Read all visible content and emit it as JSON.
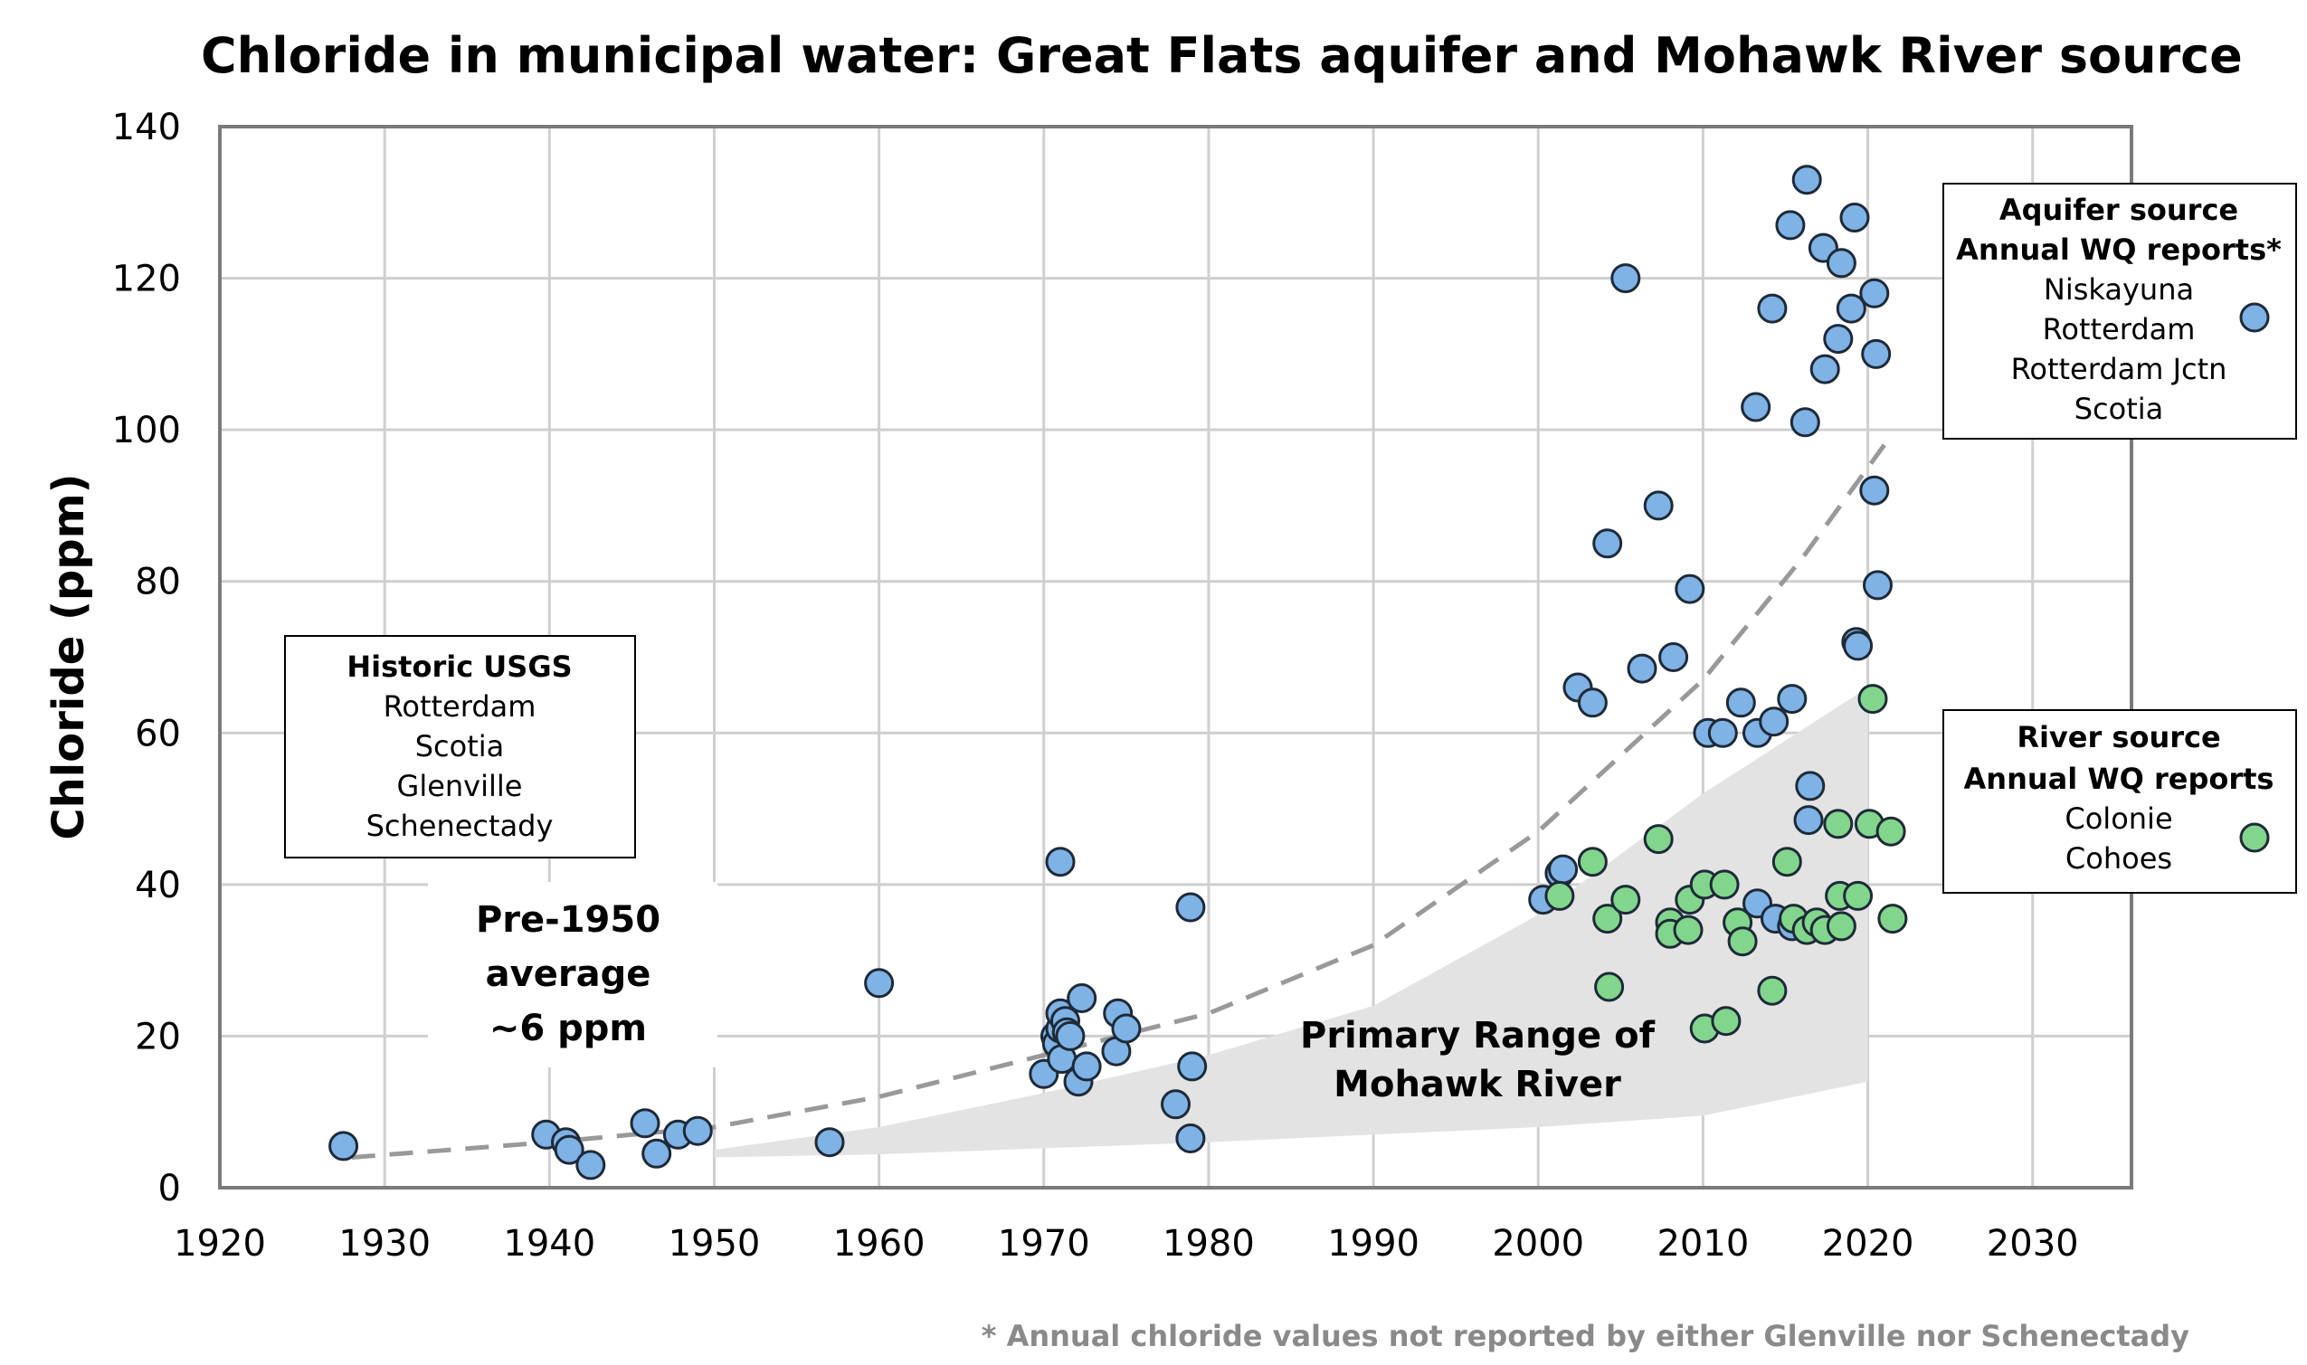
{
  "chart_data": {
    "type": "scatter",
    "title": "Chloride in municipal water: Great Flats aquifer and Mohawk River source",
    "xlabel": "",
    "ylabel": "Chloride (ppm)",
    "xlim": [
      1920,
      2036
    ],
    "ylim": [
      0,
      140
    ],
    "x_ticks": [
      "1920",
      "1930",
      "1940",
      "1950",
      "1960",
      "1970",
      "1980",
      "1990",
      "2000",
      "2010",
      "2020",
      "2030"
    ],
    "y_ticks": [
      "0",
      "20",
      "40",
      "60",
      "80",
      "100",
      "120",
      "140"
    ],
    "grid": true,
    "colors": {
      "aquifer": "#7fb2e5",
      "river": "#82d68c",
      "shaded_range": "#e3e3e3",
      "trend_line": "#999999",
      "grid": "#cfcfcf",
      "footnote": "#8a8a8a"
    },
    "series": [
      {
        "name": "Aquifer source",
        "color": "#7fb2e5",
        "points": [
          [
            1927.5,
            5.5
          ],
          [
            1939.8,
            7
          ],
          [
            1941,
            6
          ],
          [
            1941.2,
            5
          ],
          [
            1942.5,
            3
          ],
          [
            1945.8,
            8.5
          ],
          [
            1946.5,
            4.5
          ],
          [
            1947.8,
            7
          ],
          [
            1949,
            7.5
          ],
          [
            1957,
            6
          ],
          [
            1960,
            27
          ],
          [
            1970,
            15
          ],
          [
            1970.7,
            20
          ],
          [
            1970.8,
            19
          ],
          [
            1971,
            21
          ],
          [
            1971,
            23
          ],
          [
            1971,
            43
          ],
          [
            1971.1,
            17
          ],
          [
            1971.3,
            22
          ],
          [
            1971.4,
            20.5
          ],
          [
            1971.6,
            20
          ],
          [
            1972.1,
            14
          ],
          [
            1972.3,
            25
          ],
          [
            1972.6,
            16
          ],
          [
            1974.4,
            18
          ],
          [
            1974.5,
            23
          ],
          [
            1975,
            21
          ],
          [
            1978,
            11
          ],
          [
            1978.9,
            37
          ],
          [
            1978.9,
            6.5
          ],
          [
            1979,
            16
          ],
          [
            2000.3,
            38
          ],
          [
            2001.3,
            41.5
          ],
          [
            2001.5,
            42
          ],
          [
            2002.4,
            66
          ],
          [
            2003.3,
            64
          ],
          [
            2004.2,
            85
          ],
          [
            2005.3,
            120
          ],
          [
            2006.3,
            68.5
          ],
          [
            2007.3,
            90
          ],
          [
            2008.2,
            70
          ],
          [
            2009.2,
            79
          ],
          [
            2010.3,
            60
          ],
          [
            2011.2,
            60
          ],
          [
            2012.3,
            64
          ],
          [
            2013.2,
            103
          ],
          [
            2013.3,
            37.5
          ],
          [
            2013.3,
            60
          ],
          [
            2014.2,
            116
          ],
          [
            2014.3,
            61.5
          ],
          [
            2014.4,
            35.5
          ],
          [
            2015.3,
            127
          ],
          [
            2015.4,
            34.5
          ],
          [
            2015.4,
            64.5
          ],
          [
            2016.2,
            101
          ],
          [
            2016.3,
            133
          ],
          [
            2016.4,
            48.5
          ],
          [
            2016.5,
            53
          ],
          [
            2017.3,
            124
          ],
          [
            2017.4,
            108
          ],
          [
            2018.2,
            112
          ],
          [
            2018.4,
            122
          ],
          [
            2019,
            116
          ],
          [
            2019.2,
            128
          ],
          [
            2019.3,
            72
          ],
          [
            2019.4,
            71.5
          ],
          [
            2020.4,
            118
          ],
          [
            2020.4,
            92
          ],
          [
            2020.5,
            110
          ],
          [
            2020.6,
            79.5
          ]
        ]
      },
      {
        "name": "River source",
        "color": "#82d68c",
        "points": [
          [
            2001.3,
            38.5
          ],
          [
            2003.3,
            43
          ],
          [
            2004.2,
            35.5
          ],
          [
            2004.3,
            26.5
          ],
          [
            2005.3,
            38
          ],
          [
            2007.3,
            46
          ],
          [
            2008,
            35
          ],
          [
            2008,
            33.5
          ],
          [
            2009.1,
            34
          ],
          [
            2009.2,
            38
          ],
          [
            2010.1,
            40
          ],
          [
            2010.1,
            21
          ],
          [
            2011.3,
            40
          ],
          [
            2011.4,
            22
          ],
          [
            2012.1,
            35
          ],
          [
            2012.4,
            32.5
          ],
          [
            2014.2,
            26
          ],
          [
            2015.1,
            43
          ],
          [
            2015.5,
            35.5
          ],
          [
            2016.3,
            34
          ],
          [
            2016.9,
            35
          ],
          [
            2017.4,
            34
          ],
          [
            2018.2,
            48
          ],
          [
            2018.3,
            38.5
          ],
          [
            2018.4,
            34.5
          ],
          [
            2019.4,
            38.5
          ],
          [
            2020.1,
            48
          ],
          [
            2020.3,
            64.5
          ],
          [
            2021.4,
            47
          ],
          [
            2021.5,
            35.5
          ]
        ]
      }
    ],
    "primary_range": {
      "label_line1": "Primary Range of",
      "label_line2": "Mohawk River",
      "x": [
        1950,
        1960,
        1970,
        1980,
        1990,
        2000,
        2010,
        2020
      ],
      "upper": [
        5,
        8,
        12.5,
        17.5,
        24,
        36,
        52,
        66
      ],
      "lower": [
        4,
        4.4,
        5.2,
        6,
        7,
        8,
        9.5,
        14
      ]
    },
    "trend_line": {
      "style": "dashed",
      "x": [
        1928,
        1940,
        1950,
        1960,
        1970,
        1980,
        1990,
        2000,
        2010,
        2016,
        2021
      ],
      "y": [
        4,
        6,
        8,
        12,
        17.5,
        23,
        32,
        47,
        67,
        83,
        98
      ]
    },
    "annotations": {
      "pre1950_line1": "Pre-1950",
      "pre1950_line2": "average",
      "pre1950_line3": "~6 ppm",
      "footnote": "* Annual chloride values not reported by either Glenville nor Schenectady"
    },
    "legends": {
      "historic": {
        "title": "Historic USGS",
        "items": [
          "Rotterdam",
          "Scotia",
          "Glenville",
          "Schenectady"
        ]
      },
      "aquifer": {
        "title_line1": "Aquifer source",
        "title_line2": "Annual WQ reports*",
        "items": [
          "Niskayuna",
          "Rotterdam",
          "Rotterdam Jctn",
          "Scotia"
        ]
      },
      "river": {
        "title_line1": "River source",
        "title_line2": "Annual WQ reports",
        "items": [
          "Colonie",
          "Cohoes"
        ]
      }
    }
  }
}
